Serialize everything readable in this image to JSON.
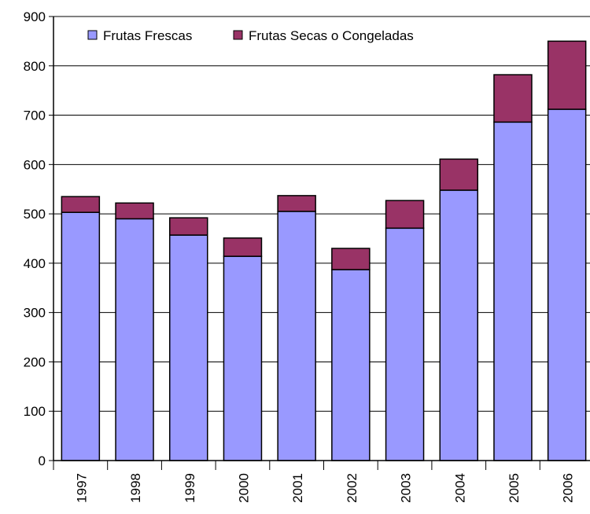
{
  "chart_data": {
    "type": "stacked_bar",
    "categories": [
      "1997",
      "1998",
      "1999",
      "2000",
      "2001",
      "2002",
      "2003",
      "2004",
      "2005",
      "2006"
    ],
    "series": [
      {
        "name": "Frutas Frescas",
        "color": "#9999ff",
        "values": [
          503,
          490,
          457,
          414,
          505,
          387,
          471,
          548,
          686,
          712
        ]
      },
      {
        "name": "Frutas Secas o Congeladas",
        "color": "#993366",
        "values": [
          32,
          32,
          35,
          37,
          32,
          43,
          56,
          63,
          96,
          138
        ]
      }
    ],
    "ylim": [
      0,
      900
    ],
    "yticks": [
      0,
      100,
      200,
      300,
      400,
      500,
      600,
      700,
      800,
      900
    ],
    "grid": true,
    "legend": "top"
  }
}
